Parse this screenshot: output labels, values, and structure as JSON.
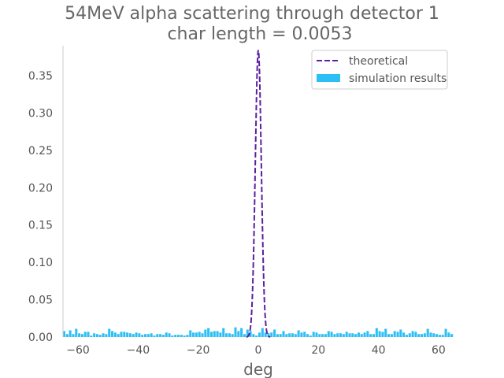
{
  "chart_data": {
    "type": "bar",
    "title_line1": "54MeV alpha scattering through detector 1",
    "title_line2": "char length = 0.0053",
    "xlabel": "deg",
    "ylabel": "",
    "xlim": [
      -65,
      65
    ],
    "ylim": [
      0,
      0.39
    ],
    "x_ticks": [
      -60,
      -40,
      -20,
      0,
      20,
      40,
      60
    ],
    "x_tick_labels": [
      "−60",
      "−40",
      "−20",
      "0",
      "20",
      "40",
      "60"
    ],
    "y_ticks": [
      0.0,
      0.05,
      0.1,
      0.15,
      0.2,
      0.25,
      0.3,
      0.35
    ],
    "y_tick_labels": [
      "0.00",
      "0.05",
      "0.10",
      "0.15",
      "0.20",
      "0.25",
      "0.30",
      "0.35"
    ],
    "grid": false,
    "legend_position": "top-right",
    "series": [
      {
        "name": "simulation results",
        "kind": "histogram",
        "color": "#2BBFF5",
        "bin_start": -65,
        "bin_width": 1.0,
        "values": [
          0.008,
          0.004,
          0.009,
          0.004,
          0.011,
          0.005,
          0.004,
          0.007,
          0.007,
          0.002,
          0.005,
          0.004,
          0.003,
          0.005,
          0.004,
          0.011,
          0.008,
          0.006,
          0.004,
          0.007,
          0.007,
          0.006,
          0.005,
          0.004,
          0.006,
          0.005,
          0.003,
          0.004,
          0.004,
          0.005,
          0.002,
          0.004,
          0.004,
          0.003,
          0.006,
          0.005,
          0.002,
          0.003,
          0.003,
          0.003,
          0.002,
          0.003,
          0.009,
          0.006,
          0.006,
          0.007,
          0.005,
          0.01,
          0.012,
          0.007,
          0.008,
          0.008,
          0.006,
          0.012,
          0.005,
          0.005,
          0.004,
          0.013,
          0.008,
          0.012,
          0.004,
          0.01,
          0.008,
          0.004,
          0.002,
          0.006,
          0.012,
          0.006,
          0.005,
          0.006,
          0.01,
          0.004,
          0.004,
          0.008,
          0.004,
          0.005,
          0.005,
          0.004,
          0.009,
          0.006,
          0.007,
          0.004,
          0.002,
          0.007,
          0.006,
          0.004,
          0.004,
          0.004,
          0.008,
          0.007,
          0.004,
          0.005,
          0.005,
          0.004,
          0.007,
          0.005,
          0.005,
          0.004,
          0.006,
          0.004,
          0.006,
          0.008,
          0.004,
          0.004,
          0.012,
          0.008,
          0.007,
          0.011,
          0.004,
          0.004,
          0.008,
          0.007,
          0.01,
          0.006,
          0.003,
          0.005,
          0.008,
          0.007,
          0.004,
          0.004,
          0.005,
          0.011,
          0.006,
          0.005,
          0.004,
          0.003,
          0.003,
          0.011,
          0.006,
          0.004
        ]
      },
      {
        "name": "theoretical",
        "kind": "line",
        "style": "dashed",
        "color": "#5B1FA0",
        "peak": 0.384,
        "center": 0.0,
        "sigma": 1.0
      }
    ]
  }
}
